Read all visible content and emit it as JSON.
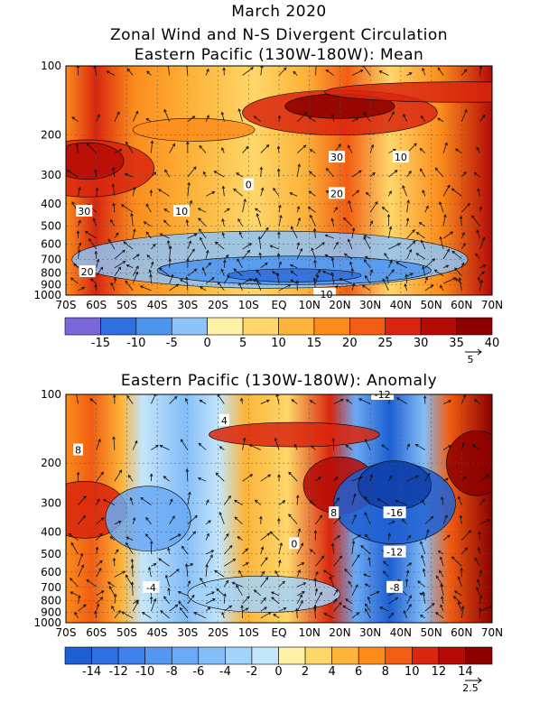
{
  "titles": {
    "line1": "March 2020",
    "line2": "Zonal Wind and N-S Divergent Circulation",
    "line3": "Eastern Pacific (130W-180W): Mean",
    "line4": "Eastern Pacific (130W-180W): Anomaly"
  },
  "colors": {
    "blue_dark": "#5a5ad2",
    "blue": "#2f6fe0",
    "light_blue": "#a8d8f8",
    "yellow": "#fff2a6",
    "orange": "#ff9a1a",
    "red": "#d9260e",
    "dark_red": "#a80000",
    "arrow": "#111111"
  },
  "chart_data": [
    {
      "type": "heatmap",
      "title": "Eastern Pacific (130W-180W): Mean",
      "x_ticks": [
        "70S",
        "60S",
        "50S",
        "40S",
        "30S",
        "20S",
        "10S",
        "EQ",
        "10N",
        "20N",
        "30N",
        "40N",
        "50N",
        "60N",
        "70N"
      ],
      "y_ticks": [
        "100",
        "200",
        "300",
        "400",
        "500",
        "600",
        "700",
        "800",
        "900",
        "1000"
      ],
      "y_scale": "log pressure",
      "contour_labels": [
        {
          "text": "30",
          "lat": -64,
          "p": 430
        },
        {
          "text": "20",
          "lat": -63,
          "p": 790
        },
        {
          "text": "10",
          "lat": -32,
          "p": 430
        },
        {
          "text": "0",
          "lat": -10,
          "p": 330
        },
        {
          "text": "30",
          "lat": 19,
          "p": 250
        },
        {
          "text": "20",
          "lat": 19,
          "p": 360
        },
        {
          "text": "10",
          "lat": 40,
          "p": 250
        },
        {
          "text": "-10",
          "lat": 15,
          "p": 990
        }
      ],
      "colorbar": {
        "labels": [
          "-15",
          "-10",
          "-5",
          "0",
          "5",
          "10",
          "15",
          "20",
          "25",
          "30",
          "35",
          "40"
        ],
        "colors": [
          "#7b68d8",
          "#2f6fe0",
          "#4d94ef",
          "#8ec3f8",
          "#fff2a6",
          "#fed76b",
          "#fcb43a",
          "#fb8c1c",
          "#f15d12",
          "#d9260e",
          "#b50a06",
          "#8c0000"
        ]
      },
      "vector_reference": "5"
    },
    {
      "type": "heatmap",
      "title": "Eastern Pacific (130W-180W): Anomaly",
      "x_ticks": [
        "70S",
        "60S",
        "50S",
        "40S",
        "30S",
        "20S",
        "10S",
        "EQ",
        "10N",
        "20N",
        "30N",
        "40N",
        "50N",
        "60N",
        "70N"
      ],
      "y_ticks": [
        "100",
        "200",
        "300",
        "400",
        "500",
        "600",
        "700",
        "800",
        "900",
        "1000"
      ],
      "y_scale": "log pressure",
      "contour_labels": [
        {
          "text": "8",
          "lat": -66,
          "p": 175
        },
        {
          "text": "4",
          "lat": -18,
          "p": 130
        },
        {
          "text": "8",
          "lat": 18,
          "p": 330
        },
        {
          "text": "0",
          "lat": 5,
          "p": 450
        },
        {
          "text": "-12",
          "lat": 34,
          "p": 100
        },
        {
          "text": "-16",
          "lat": 38,
          "p": 330
        },
        {
          "text": "-12",
          "lat": 38,
          "p": 490
        },
        {
          "text": "-8",
          "lat": 38,
          "p": 700
        },
        {
          "text": "-4",
          "lat": -42,
          "p": 700
        }
      ],
      "colorbar": {
        "labels": [
          "-14",
          "-12",
          "-10",
          "-8",
          "-6",
          "-4",
          "-2",
          "0",
          "2",
          "4",
          "6",
          "8",
          "10",
          "12",
          "14"
        ],
        "colors": [
          "#1e5fd2",
          "#2f6fe0",
          "#3f83ea",
          "#5596f0",
          "#6aa9f4",
          "#84bdf7",
          "#a3d2fa",
          "#c4e6fb",
          "#fff2a6",
          "#fed76b",
          "#fcb43a",
          "#fb8c1c",
          "#f15d12",
          "#d9260e",
          "#b50a06",
          "#8c0000"
        ]
      },
      "vector_reference": "2.5"
    }
  ]
}
